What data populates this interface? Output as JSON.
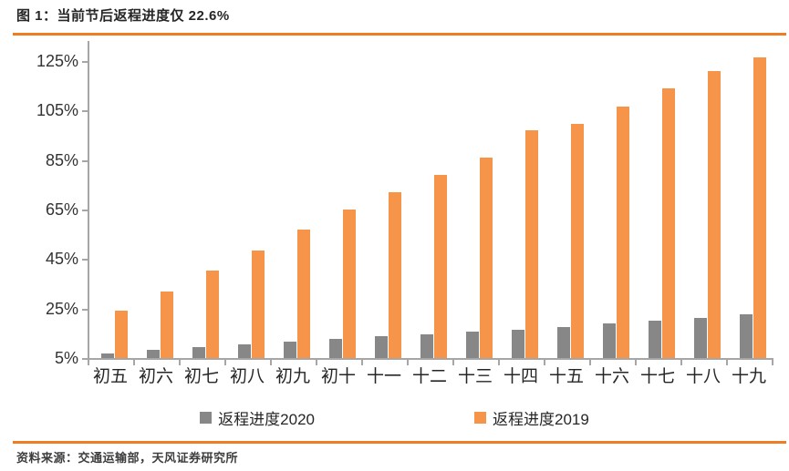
{
  "header": {
    "title": "图 1：当前节后返程进度仅 22.6%"
  },
  "footer": {
    "source": "资料来源：交通运输部，天风证券研究所"
  },
  "colors": {
    "accent_orange": "#EE7D23",
    "bar_orange": "#F6954A",
    "bar_gray": "#878787",
    "axis_gray": "#A6A6A6",
    "text_dark": "#262626"
  },
  "legend": {
    "items": [
      {
        "label": "返程进度2020",
        "color": "#878787"
      },
      {
        "label": "返程进度2019",
        "color": "#F6954A"
      }
    ]
  },
  "chart_data": {
    "type": "bar",
    "title": "图 1：当前节后返程进度仅 22.6%",
    "categories": [
      "初五",
      "初六",
      "初七",
      "初八",
      "初九",
      "初十",
      "十一",
      "十二",
      "十三",
      "十四",
      "十五",
      "十六",
      "十七",
      "十八",
      "十九"
    ],
    "series": [
      {
        "name": "返程进度2020",
        "color": "#878787",
        "values": [
          6.8,
          8.3,
          9.4,
          10.5,
          11.6,
          12.7,
          13.8,
          14.6,
          15.6,
          16.5,
          17.5,
          18.9,
          20.0,
          21.2,
          22.6
        ]
      },
      {
        "name": "返程进度2019",
        "color": "#F6954A",
        "values": [
          24,
          32,
          40.5,
          48.5,
          57,
          65,
          72,
          79,
          86,
          97,
          99.5,
          106.5,
          114,
          121,
          126.5
        ]
      }
    ],
    "xlabel": "",
    "ylabel": "",
    "yticks": [
      5,
      25,
      45,
      65,
      85,
      105,
      125
    ],
    "ytick_suffix": "%",
    "ylim": [
      5,
      129
    ],
    "grid": false,
    "legend_position": "bottom"
  }
}
